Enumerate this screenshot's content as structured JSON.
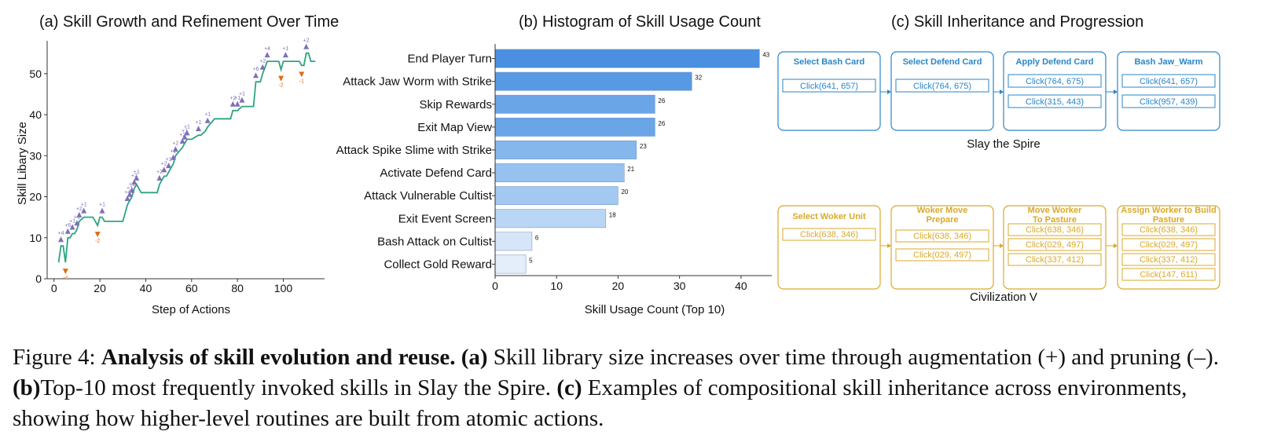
{
  "panel_a": {
    "title": "(a) Skill Growth and Refinement Over Time",
    "line_color": "#2aa57f",
    "add_color": "#7f6fb8",
    "prune_color": "#e26a10"
  },
  "panel_b": {
    "title": "(b) Histogram of Skill Usage Count"
  },
  "panel_c": {
    "title": "(c) Skill Inheritance and Progression",
    "rows": [
      {
        "env": "Slay the Spire",
        "color": "#2a86c8",
        "boxes": [
          {
            "title": "Select Bash Card",
            "actions": [
              "Click(641, 657)"
            ]
          },
          {
            "title": "Select Defend Card",
            "actions": [
              "Click(764, 675)"
            ]
          },
          {
            "title": "Apply Defend Card",
            "actions": [
              "Click(764, 675)",
              "Click(315, 443)"
            ]
          },
          {
            "title": "Bash Jaw_Warm",
            "actions": [
              "Click(641, 657)",
              "Click(957, 439)"
            ]
          }
        ]
      },
      {
        "env": "Civilization V",
        "color": "#d9a928",
        "boxes": [
          {
            "title": "Select Woker Unit",
            "actions": [
              "Click(638, 346)"
            ]
          },
          {
            "title": "Woker Move Prepare",
            "actions": [
              "Click(638, 346)",
              "Click(029, 497)"
            ]
          },
          {
            "title": "Move Worker To Pasture",
            "actions": [
              "Click(638, 346)",
              "Click(029, 497)",
              "Click(337, 412)"
            ]
          },
          {
            "title": "Assign Worker to Build Pasture",
            "actions": [
              "Click(638, 346)",
              "Click(029, 497)",
              "Click(337, 412)",
              "Click(147, 611)"
            ]
          }
        ]
      }
    ]
  },
  "caption": {
    "label": "Figure 4: ",
    "bold_title": "Analysis of skill evolution and reuse.",
    "a_tag": "(a)",
    "a_text": " Skill library size increases over time through augmentation (+) and pruning (–). ",
    "b_tag": "(b)",
    "b_text": "Top-10 most frequently invoked skills in Slay the Spire. ",
    "c_tag": "(c)",
    "c_text": " Examples of compositional skill inheritance across environments, showing how higher-level routines are built from atomic actions."
  },
  "chart_data": [
    {
      "type": "line",
      "title": "(a) Skill Growth and Refinement Over Time",
      "xlabel": "Step of Actions",
      "ylabel": "Skill Libary Size",
      "xlim": [
        -3,
        118
      ],
      "ylim": [
        0,
        58
      ],
      "xticks": [
        0,
        20,
        40,
        60,
        80,
        100
      ],
      "yticks": [
        0,
        10,
        20,
        30,
        40,
        50
      ],
      "series": [
        {
          "points": [
            [
              2,
              4
            ],
            [
              3,
              8
            ],
            [
              4,
              8
            ],
            [
              5,
              4
            ],
            [
              6,
              10
            ],
            [
              7,
              10
            ],
            [
              8,
              11
            ],
            [
              9,
              11
            ],
            [
              10,
              12
            ],
            [
              11,
              14
            ],
            [
              13,
              15
            ],
            [
              17,
              15
            ],
            [
              19,
              13
            ],
            [
              20,
              15
            ],
            [
              21,
              15
            ],
            [
              22,
              14
            ],
            [
              30,
              14
            ],
            [
              32,
              18
            ],
            [
              33,
              19
            ],
            [
              34,
              20
            ],
            [
              35,
              22
            ],
            [
              36,
              23
            ],
            [
              38,
              21
            ],
            [
              45,
              21
            ],
            [
              46,
              23
            ],
            [
              48,
              25
            ],
            [
              49,
              25
            ],
            [
              50,
              26
            ],
            [
              52,
              28
            ],
            [
              53,
              30
            ],
            [
              56,
              32
            ],
            [
              57,
              33
            ],
            [
              58,
              34
            ],
            [
              60,
              34
            ],
            [
              63,
              35
            ],
            [
              64,
              35
            ],
            [
              66,
              36
            ],
            [
              67,
              37
            ],
            [
              70,
              39
            ],
            [
              77,
              39
            ],
            [
              78,
              41
            ],
            [
              80,
              41
            ],
            [
              82,
              42
            ],
            [
              87,
              42
            ],
            [
              88,
              48
            ],
            [
              90,
              48
            ],
            [
              91,
              50
            ],
            [
              93,
              53
            ],
            [
              98,
              53
            ],
            [
              99,
              51
            ],
            [
              100,
              53
            ],
            [
              102,
              53
            ],
            [
              107,
              53
            ],
            [
              108,
              52
            ],
            [
              109,
              52
            ],
            [
              110,
              55
            ],
            [
              111,
              55
            ],
            [
              112,
              53
            ],
            [
              114,
              53
            ]
          ]
        }
      ],
      "annotations": [
        {
          "x": 3,
          "y": 8,
          "label": "+4",
          "kind": "add"
        },
        {
          "x": 5,
          "y": 4,
          "label": "-4",
          "kind": "prune"
        },
        {
          "x": 6,
          "y": 10,
          "label": "+6",
          "kind": "add"
        },
        {
          "x": 8,
          "y": 11,
          "label": "+1",
          "kind": "add"
        },
        {
          "x": 10,
          "y": 12,
          "label": "+1",
          "kind": "add"
        },
        {
          "x": 11,
          "y": 14,
          "label": "+2",
          "kind": "add"
        },
        {
          "x": 13,
          "y": 15,
          "label": "+1",
          "kind": "add"
        },
        {
          "x": 19,
          "y": 13,
          "label": "-2",
          "kind": "prune"
        },
        {
          "x": 21,
          "y": 15,
          "label": "+1",
          "kind": "add"
        },
        {
          "x": 32,
          "y": 18,
          "label": "+4",
          "kind": "add"
        },
        {
          "x": 33,
          "y": 19,
          "label": "+1",
          "kind": "add"
        },
        {
          "x": 34,
          "y": 20,
          "label": "+1",
          "kind": "add"
        },
        {
          "x": 35,
          "y": 22,
          "label": "+2",
          "kind": "add"
        },
        {
          "x": 36,
          "y": 23,
          "label": "+1",
          "kind": "add"
        },
        {
          "x": 46,
          "y": 23,
          "label": "+2",
          "kind": "add"
        },
        {
          "x": 48,
          "y": 25,
          "label": "+2",
          "kind": "add"
        },
        {
          "x": 50,
          "y": 26,
          "label": "+1",
          "kind": "add"
        },
        {
          "x": 52,
          "y": 28,
          "label": "+2",
          "kind": "add"
        },
        {
          "x": 53,
          "y": 30,
          "label": "+2",
          "kind": "add"
        },
        {
          "x": 56,
          "y": 32,
          "label": "+2",
          "kind": "add"
        },
        {
          "x": 57,
          "y": 33,
          "label": "+1",
          "kind": "add"
        },
        {
          "x": 58,
          "y": 34,
          "label": "+1",
          "kind": "add"
        },
        {
          "x": 63,
          "y": 35,
          "label": "+1",
          "kind": "add"
        },
        {
          "x": 67,
          "y": 37,
          "label": "+1",
          "kind": "add"
        },
        {
          "x": 78,
          "y": 41,
          "label": "+2",
          "kind": "add"
        },
        {
          "x": 80,
          "y": 41,
          "label": "+1",
          "kind": "add"
        },
        {
          "x": 82,
          "y": 42,
          "label": "+1",
          "kind": "add"
        },
        {
          "x": 88,
          "y": 48,
          "label": "+6",
          "kind": "add"
        },
        {
          "x": 91,
          "y": 50,
          "label": "+2",
          "kind": "add"
        },
        {
          "x": 93,
          "y": 53,
          "label": "+4",
          "kind": "add"
        },
        {
          "x": 99,
          "y": 51,
          "label": "-2",
          "kind": "prune"
        },
        {
          "x": 101,
          "y": 53,
          "label": "+1",
          "kind": "add"
        },
        {
          "x": 108,
          "y": 52,
          "label": "-1",
          "kind": "prune"
        },
        {
          "x": 110,
          "y": 55,
          "label": "+2",
          "kind": "add"
        }
      ]
    },
    {
      "type": "bar",
      "orientation": "horizontal",
      "title": "(b) Histogram of Skill Usage Count",
      "xlabel": "Skill Usage Count (Top 10)",
      "xlim": [
        0,
        45
      ],
      "xticks": [
        0,
        10,
        20,
        30,
        40
      ],
      "categories": [
        "End Player Turn",
        "Attack Jaw Worm with Strike",
        "Skip Rewards",
        "Exit Map View",
        "Attack Spike Slime with Strike",
        "Activate Defend Card",
        "Attack Vulnerable Cultist",
        "Exit Event Screen",
        "Bash Attack on Cultist",
        "Collect Gold Reward"
      ],
      "values": [
        43,
        32,
        26,
        26,
        23,
        21,
        20,
        18,
        6,
        5
      ],
      "colors": [
        "#4a8fe0",
        "#5899e4",
        "#6aa5e8",
        "#6aa5e8",
        "#85b6ec",
        "#97c1ef",
        "#a3c8f1",
        "#b9d6f4",
        "#d6e6f8",
        "#e3eefa"
      ]
    }
  ]
}
